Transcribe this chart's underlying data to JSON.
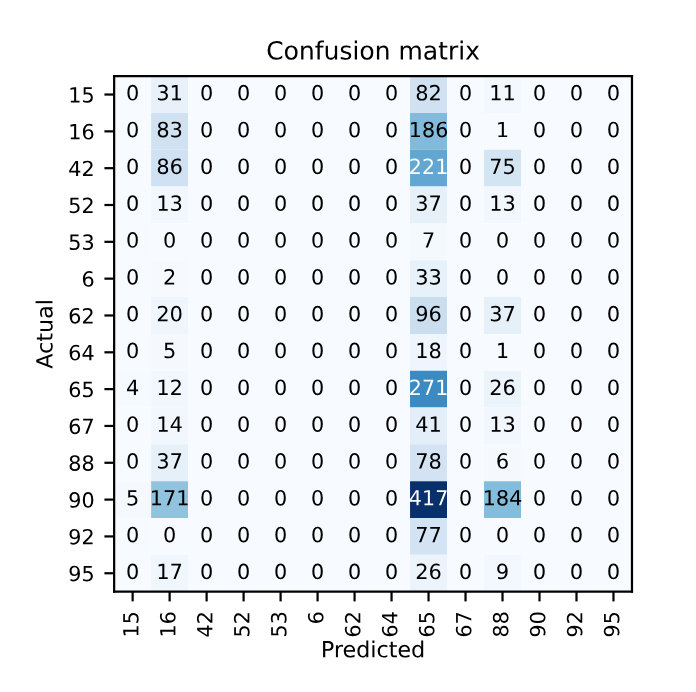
{
  "chart_data": {
    "type": "heatmap",
    "title": "Confusion matrix",
    "xlabel": "Predicted",
    "ylabel": "Actual",
    "categories": [
      "15",
      "16",
      "42",
      "52",
      "53",
      "6",
      "62",
      "64",
      "65",
      "67",
      "88",
      "90",
      "92",
      "95"
    ],
    "y_categories": [
      "15",
      "16",
      "42",
      "52",
      "53",
      "6",
      "62",
      "64",
      "65",
      "67",
      "88",
      "90",
      "92",
      "95"
    ],
    "cells": [
      [
        0,
        31,
        0,
        0,
        0,
        0,
        0,
        0,
        82,
        0,
        11,
        0,
        0,
        0
      ],
      [
        0,
        83,
        0,
        0,
        0,
        0,
        0,
        0,
        186,
        0,
        1,
        0,
        0,
        0
      ],
      [
        0,
        86,
        0,
        0,
        0,
        0,
        0,
        0,
        221,
        0,
        75,
        0,
        0,
        0
      ],
      [
        0,
        13,
        0,
        0,
        0,
        0,
        0,
        0,
        37,
        0,
        13,
        0,
        0,
        0
      ],
      [
        0,
        0,
        0,
        0,
        0,
        0,
        0,
        0,
        7,
        0,
        0,
        0,
        0,
        0
      ],
      [
        0,
        2,
        0,
        0,
        0,
        0,
        0,
        0,
        33,
        0,
        0,
        0,
        0,
        0
      ],
      [
        0,
        20,
        0,
        0,
        0,
        0,
        0,
        0,
        96,
        0,
        37,
        0,
        0,
        0
      ],
      [
        0,
        5,
        0,
        0,
        0,
        0,
        0,
        0,
        18,
        0,
        1,
        0,
        0,
        0
      ],
      [
        4,
        12,
        0,
        0,
        0,
        0,
        0,
        0,
        271,
        0,
        26,
        0,
        0,
        0
      ],
      [
        0,
        14,
        0,
        0,
        0,
        0,
        0,
        0,
        41,
        0,
        13,
        0,
        0,
        0
      ],
      [
        0,
        37,
        0,
        0,
        0,
        0,
        0,
        0,
        78,
        0,
        6,
        0,
        0,
        0
      ],
      [
        5,
        171,
        0,
        0,
        0,
        0,
        0,
        0,
        417,
        0,
        184,
        0,
        0,
        0
      ],
      [
        0,
        0,
        0,
        0,
        0,
        0,
        0,
        0,
        77,
        0,
        0,
        0,
        0,
        0
      ],
      [
        0,
        17,
        0,
        0,
        0,
        0,
        0,
        0,
        26,
        0,
        9,
        0,
        0,
        0
      ]
    ],
    "data_labels": true,
    "grid": false
  }
}
